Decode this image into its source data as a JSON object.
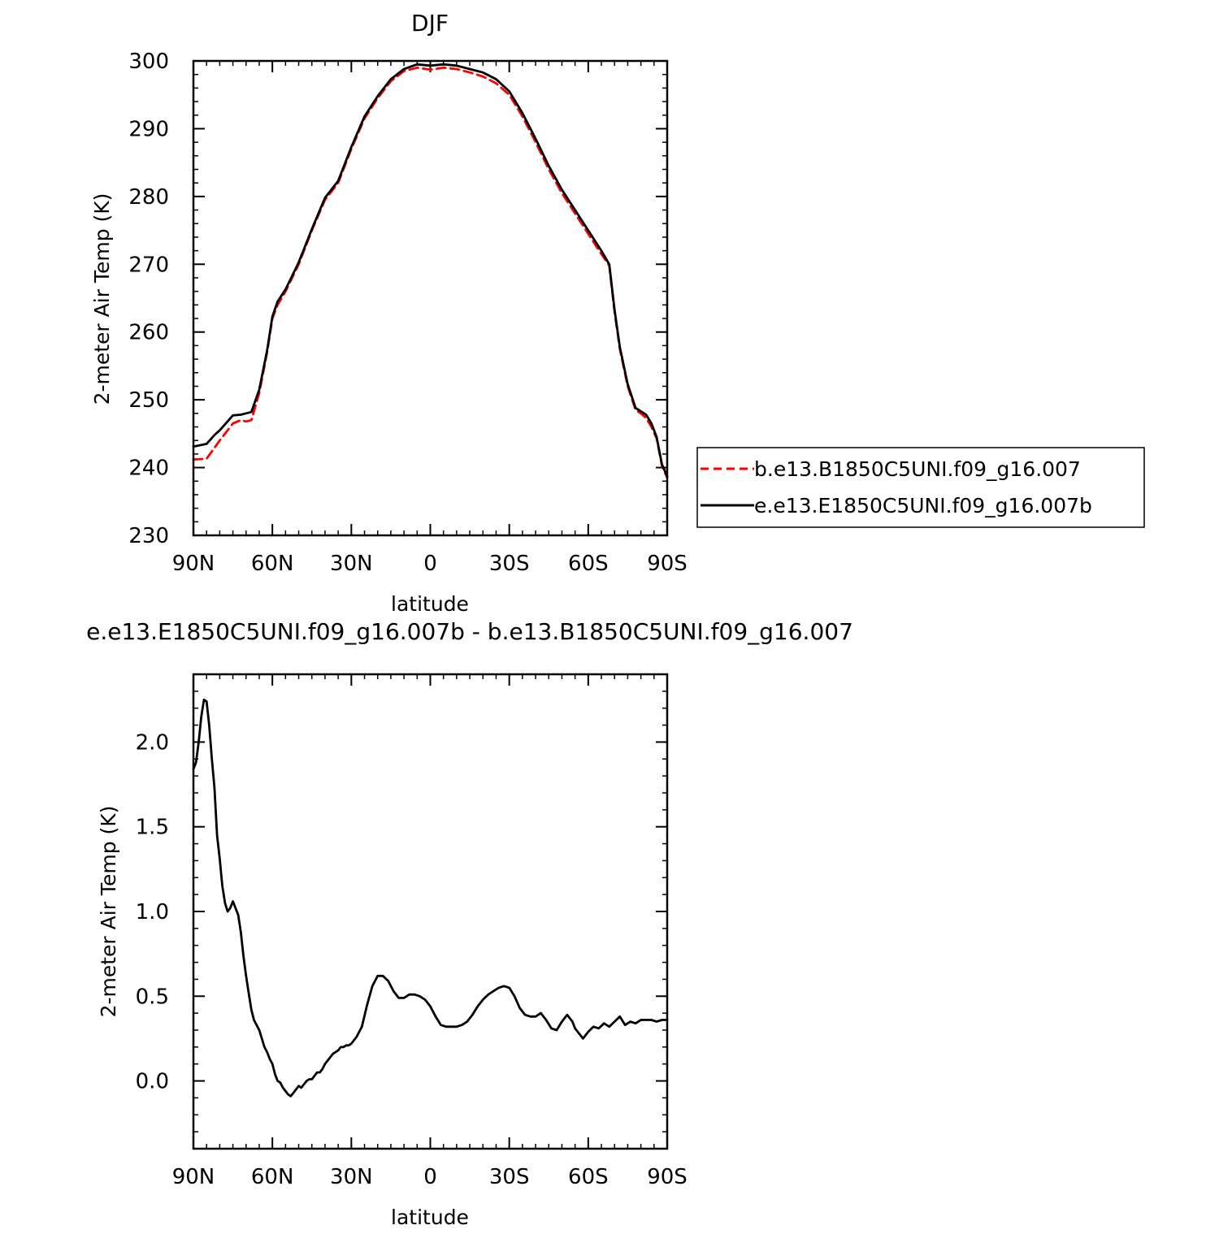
{
  "chart_data": [
    {
      "type": "line",
      "title": "DJF",
      "xlabel": "latitude",
      "ylabel": "2-meter Air Temp (K)",
      "xlim": [
        90,
        -90
      ],
      "ylim": [
        230,
        300
      ],
      "x_ticks": [
        90,
        60,
        30,
        0,
        -30,
        -60,
        -90
      ],
      "x_tick_labels": [
        "90N",
        "60N",
        "30N",
        "0",
        "30S",
        "60S",
        "90S"
      ],
      "y_ticks": [
        230,
        240,
        250,
        260,
        270,
        280,
        290,
        300
      ],
      "y_tick_labels": [
        "230",
        "240",
        "250",
        "260",
        "270",
        "280",
        "290",
        "300"
      ],
      "legend_position": "right",
      "series": [
        {
          "name": "b.e13.B1850C5UNI.f09_g16.007",
          "color": "#ff0000",
          "dash": "dashed",
          "x": [
            90,
            85,
            80,
            75,
            72,
            70,
            68,
            65,
            62,
            60,
            58,
            55,
            50,
            45,
            40,
            35,
            30,
            25,
            20,
            15,
            10,
            5,
            0,
            -5,
            -10,
            -15,
            -20,
            -25,
            -30,
            -35,
            -40,
            -45,
            -50,
            -55,
            -60,
            -65,
            -68,
            -70,
            -72,
            -75,
            -78,
            -80,
            -82,
            -84,
            -86,
            -88,
            -90
          ],
          "y": [
            241.2,
            241.3,
            244,
            246.5,
            247,
            246.8,
            247,
            251,
            257,
            262,
            264,
            266,
            270,
            275,
            279.5,
            282,
            287,
            291.5,
            294.5,
            297,
            298.5,
            299,
            298.7,
            299,
            298.8,
            298.3,
            297.7,
            296.7,
            295,
            291.8,
            288,
            284,
            280.5,
            277.5,
            274.5,
            271.5,
            269.8,
            263,
            257.5,
            252,
            248.5,
            248,
            247.3,
            246,
            244.3,
            240.3,
            238.5
          ]
        },
        {
          "name": "e.e13.E1850C5UNI.f09_g16.007b",
          "color": "#000000",
          "dash": "solid",
          "x": [
            90,
            85,
            82,
            80,
            75,
            72,
            70,
            68,
            65,
            62,
            60,
            58,
            55,
            50,
            45,
            40,
            35,
            30,
            25,
            20,
            15,
            10,
            5,
            0,
            -5,
            -10,
            -15,
            -20,
            -25,
            -30,
            -35,
            -40,
            -45,
            -50,
            -55,
            -60,
            -65,
            -68,
            -70,
            -72,
            -75,
            -78,
            -80,
            -82,
            -84,
            -86,
            -88,
            -90
          ],
          "y": [
            243.1,
            243.5,
            244.8,
            245.5,
            247.7,
            247.8,
            248,
            248.2,
            251.5,
            257.3,
            262.3,
            264.5,
            266.3,
            270.3,
            275.2,
            279.8,
            282.3,
            287.3,
            291.8,
            294.8,
            297.3,
            298.8,
            299.5,
            299.3,
            299.5,
            299.3,
            298.8,
            298.3,
            297.3,
            295.5,
            292.3,
            288.5,
            284.5,
            281,
            278,
            275,
            272,
            270,
            263.3,
            257.8,
            252.3,
            248.8,
            248.3,
            247.8,
            246.5,
            244.5,
            240.5,
            238.7
          ]
        }
      ]
    },
    {
      "type": "line",
      "title": "e.e13.E1850C5UNI.f09_g16.007b - b.e13.B1850C5UNI.f09_g16.007",
      "xlabel": "latitude",
      "ylabel": "2-meter Air Temp (K)",
      "xlim": [
        90,
        -90
      ],
      "ylim": [
        -0.4,
        2.4
      ],
      "x_ticks": [
        90,
        60,
        30,
        0,
        -30,
        -60,
        -90
      ],
      "x_tick_labels": [
        "90N",
        "60N",
        "30N",
        "0",
        "30S",
        "60S",
        "90S"
      ],
      "y_ticks": [
        0.0,
        0.5,
        1.0,
        1.5,
        2.0
      ],
      "y_tick_labels": [
        "0.0",
        "0.5",
        "1.0",
        "1.5",
        "2.0"
      ],
      "series": [
        {
          "color": "#000000",
          "dash": "solid",
          "x": [
            90,
            89,
            88,
            87,
            86,
            85,
            84,
            83,
            82,
            81,
            80,
            79,
            78,
            77,
            76,
            75,
            74,
            73,
            72,
            71,
            70,
            69,
            68,
            67,
            66,
            65,
            64,
            63,
            62,
            61,
            60,
            59,
            58,
            57,
            56,
            55,
            54,
            53,
            52,
            51,
            50,
            49,
            48,
            47,
            46,
            45,
            44,
            43,
            42,
            41,
            40,
            39,
            38,
            37,
            36,
            35,
            34,
            33,
            32,
            31,
            30,
            28,
            26,
            24,
            22,
            20,
            18,
            16,
            14,
            12,
            10,
            8,
            6,
            4,
            2,
            0,
            -2,
            -4,
            -6,
            -8,
            -10,
            -12,
            -14,
            -16,
            -18,
            -20,
            -22,
            -24,
            -26,
            -28,
            -30,
            -32,
            -34,
            -36,
            -38,
            -40,
            -42,
            -44,
            -46,
            -48,
            -50,
            -52,
            -54,
            -55,
            -56,
            -58,
            -60,
            -62,
            -64,
            -66,
            -68,
            -70,
            -72,
            -74,
            -76,
            -78,
            -80,
            -82,
            -84,
            -86,
            -88,
            -90
          ],
          "y": [
            1.84,
            1.88,
            2.0,
            2.15,
            2.25,
            2.24,
            2.1,
            1.9,
            1.73,
            1.45,
            1.31,
            1.15,
            1.05,
            1.0,
            1.02,
            1.06,
            1.02,
            0.98,
            0.88,
            0.74,
            0.62,
            0.52,
            0.42,
            0.36,
            0.33,
            0.3,
            0.25,
            0.2,
            0.17,
            0.13,
            0.1,
            0.04,
            0.0,
            -0.01,
            -0.04,
            -0.06,
            -0.08,
            -0.09,
            -0.07,
            -0.05,
            -0.03,
            -0.04,
            -0.02,
            0.0,
            0.01,
            0.01,
            0.03,
            0.05,
            0.05,
            0.07,
            0.1,
            0.12,
            0.14,
            0.16,
            0.17,
            0.18,
            0.2,
            0.2,
            0.21,
            0.21,
            0.22,
            0.26,
            0.32,
            0.45,
            0.56,
            0.62,
            0.62,
            0.59,
            0.53,
            0.49,
            0.49,
            0.51,
            0.51,
            0.5,
            0.48,
            0.44,
            0.38,
            0.33,
            0.32,
            0.32,
            0.32,
            0.33,
            0.35,
            0.39,
            0.44,
            0.48,
            0.51,
            0.53,
            0.55,
            0.56,
            0.55,
            0.5,
            0.43,
            0.39,
            0.38,
            0.38,
            0.4,
            0.36,
            0.31,
            0.3,
            0.35,
            0.39,
            0.35,
            0.31,
            0.29,
            0.25,
            0.29,
            0.32,
            0.31,
            0.34,
            0.32,
            0.35,
            0.38,
            0.33,
            0.35,
            0.34,
            0.36,
            0.36,
            0.36,
            0.35,
            0.36,
            0.36
          ]
        }
      ]
    }
  ]
}
